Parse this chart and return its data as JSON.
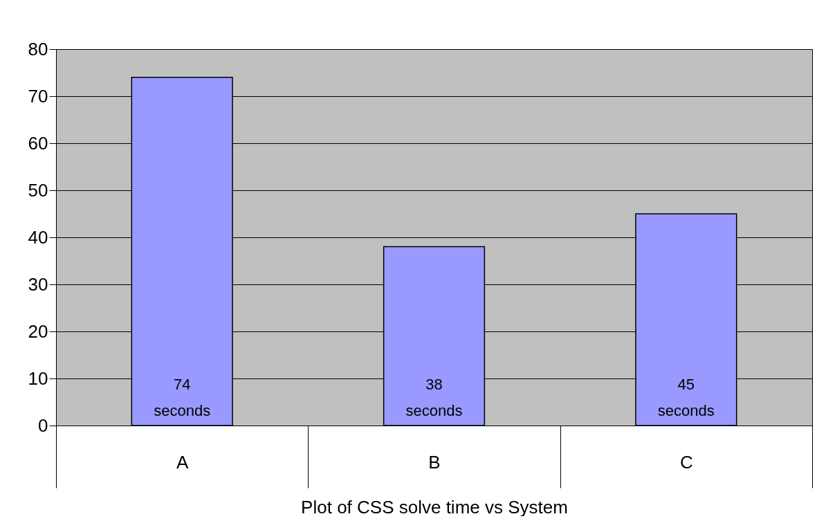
{
  "chart_data": {
    "type": "bar",
    "xlabel": "Plot of CSS solve time vs System",
    "categories": [
      "A",
      "B",
      "C"
    ],
    "values": [
      74,
      38,
      45
    ],
    "value_labels": [
      "74 seconds",
      "38 seconds",
      "45 seconds"
    ],
    "color": "#9999ff",
    "ylim": [
      0,
      80
    ],
    "yticks": [
      0,
      10,
      20,
      30,
      40,
      50,
      60,
      70,
      80
    ],
    "grid": "y"
  }
}
